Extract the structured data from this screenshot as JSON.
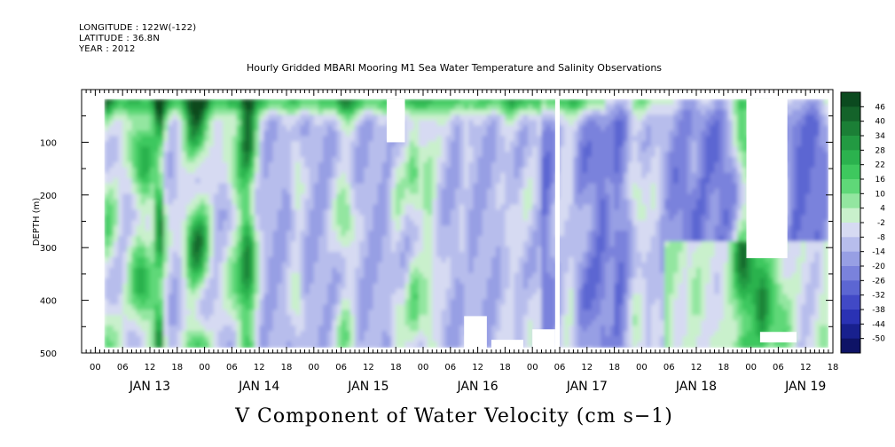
{
  "header": {
    "longitude": "LONGITUDE : 122W(-122)",
    "latitude": "LATITUDE : 36.8N",
    "year": "YEAR : 2012"
  },
  "chart_data": {
    "type": "heatmap",
    "title": "Hourly Gridded MBARI Mooring M1 Sea Water Temperature and Salinity Observations",
    "xlabel": "V Component of Water Velocity (cm s−1)",
    "ylabel": "DEPTH (m)",
    "ylim": [
      500,
      0
    ],
    "y_ticks": [
      100,
      200,
      300,
      400,
      500
    ],
    "y_tick_labels": [
      "100",
      "200",
      "300",
      "400",
      "500"
    ],
    "x_hour_labels": [
      "00",
      "06",
      "12",
      "18",
      "00",
      "06",
      "12",
      "18",
      "00",
      "06",
      "12",
      "18",
      "00",
      "06",
      "12",
      "18",
      "00",
      "06",
      "12",
      "18",
      "00",
      "06",
      "12",
      "18",
      "00",
      "06",
      "12",
      "18"
    ],
    "x_day_labels": [
      "JAN 13",
      "JAN 14",
      "JAN 15",
      "JAN 16",
      "JAN 17",
      "JAN 18",
      "JAN 19"
    ],
    "x_range_hours": [
      -3,
      162
    ],
    "colorbar": {
      "labels": [
        "46",
        "40",
        "34",
        "28",
        "22",
        "16",
        "10",
        "4",
        "-2",
        "-8",
        "-14",
        "-20",
        "-26",
        "-32",
        "-38",
        "-44",
        "-50"
      ],
      "colors": [
        "#0b4a1f",
        "#14632a",
        "#1b7f36",
        "#229a42",
        "#2bb24e",
        "#3ec85e",
        "#5fd878",
        "#93e6a0",
        "#c9f0cc",
        "#d6daf2",
        "#b7bdec",
        "#979fe4",
        "#7a82dc",
        "#5c66d2",
        "#4149c6",
        "#2a32b4",
        "#18208e",
        "#0e1366"
      ]
    },
    "data_extent": {
      "x_start_hours": 2,
      "x_end_hours": 161,
      "depth_top": 18,
      "depth_bottom": 490
    },
    "gaps": [
      {
        "x_from_hours": 64,
        "x_to_hours": 68,
        "depth_from": 18,
        "depth_to": 100
      },
      {
        "x_from_hours": 101,
        "x_to_hours": 102,
        "depth_from": 18,
        "depth_to": 500
      },
      {
        "x_from_hours": 143,
        "x_to_hours": 152,
        "depth_from": 18,
        "depth_to": 320
      },
      {
        "x_from_hours": 146,
        "x_to_hours": 154,
        "depth_from": 460,
        "depth_to": 480
      },
      {
        "x_from_hours": 81,
        "x_to_hours": 86,
        "depth_from": 430,
        "depth_to": 500
      },
      {
        "x_from_hours": 87,
        "x_to_hours": 94,
        "depth_from": 475,
        "depth_to": 500
      },
      {
        "x_from_hours": 96,
        "x_to_hours": 101,
        "depth_from": 455,
        "depth_to": 500
      }
    ]
  }
}
